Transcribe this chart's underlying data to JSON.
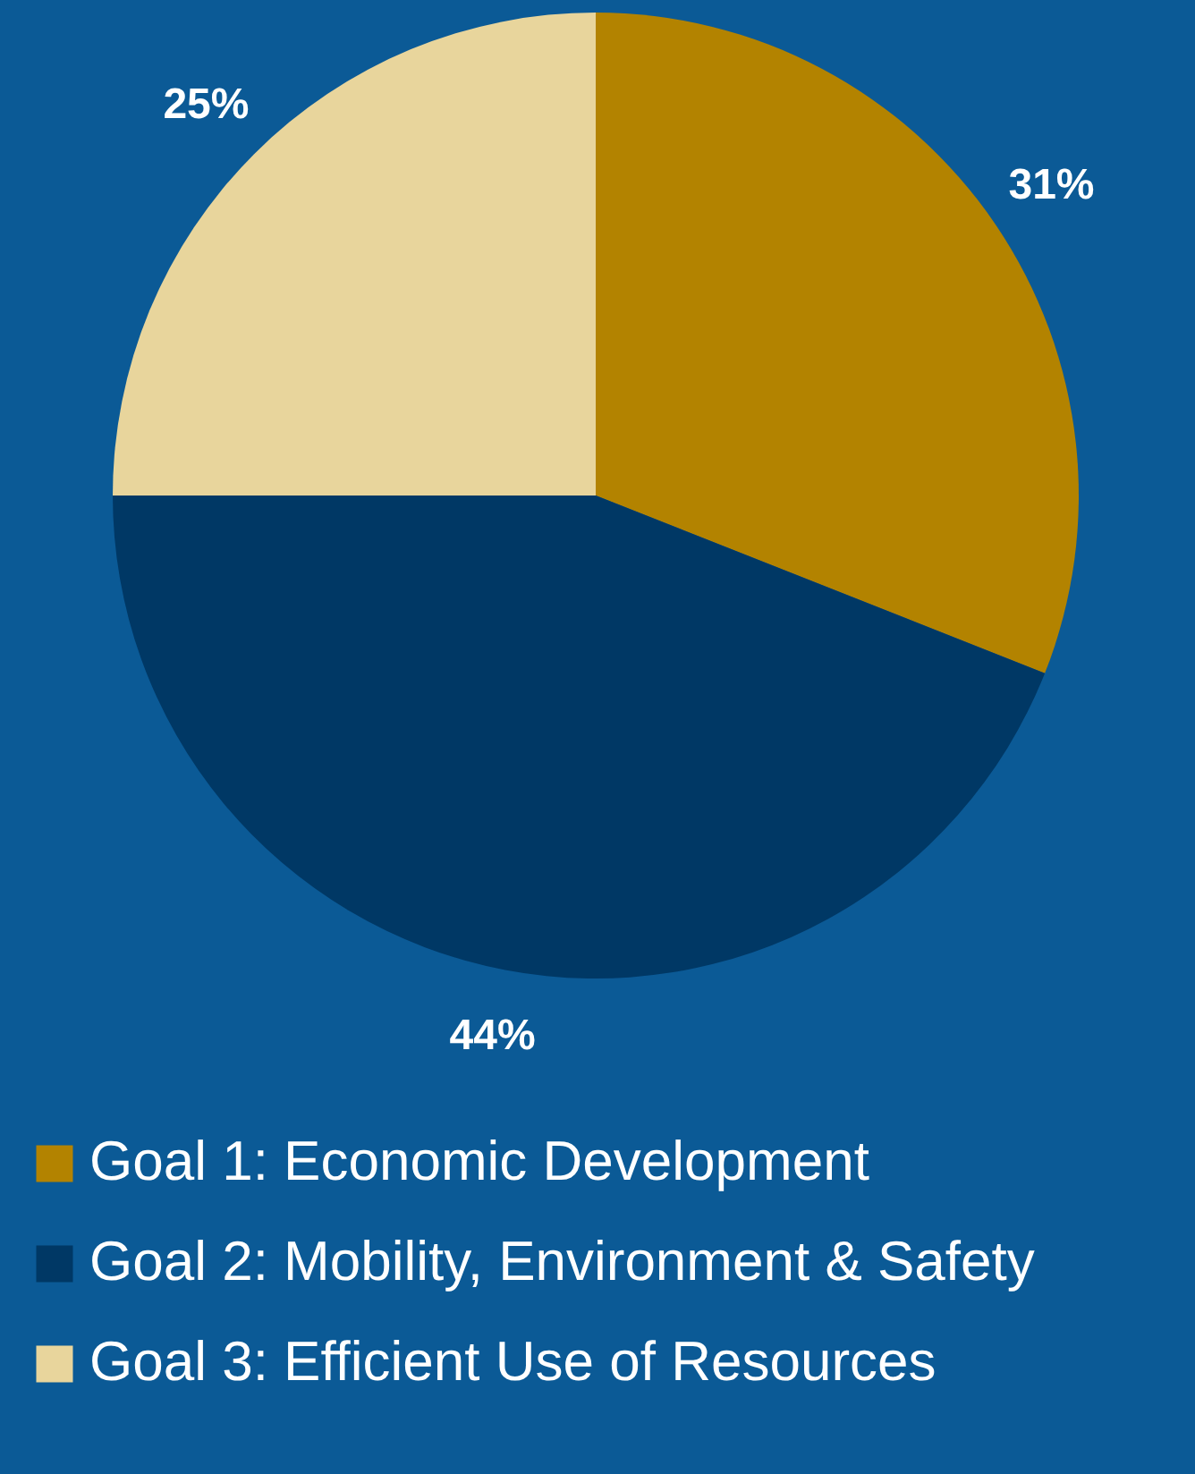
{
  "chart_data": {
    "type": "pie",
    "categories": [
      "Goal 1: Economic Development",
      "Goal 2:  Mobility, Environment & Safety",
      "Goal 3: Efficient Use of Resources"
    ],
    "values": [
      31,
      44,
      25
    ],
    "colors": [
      "#b38300",
      "#003865",
      "#e8d59c"
    ],
    "value_labels": [
      "31%",
      "44%",
      "25%"
    ],
    "legend": "bottom"
  }
}
